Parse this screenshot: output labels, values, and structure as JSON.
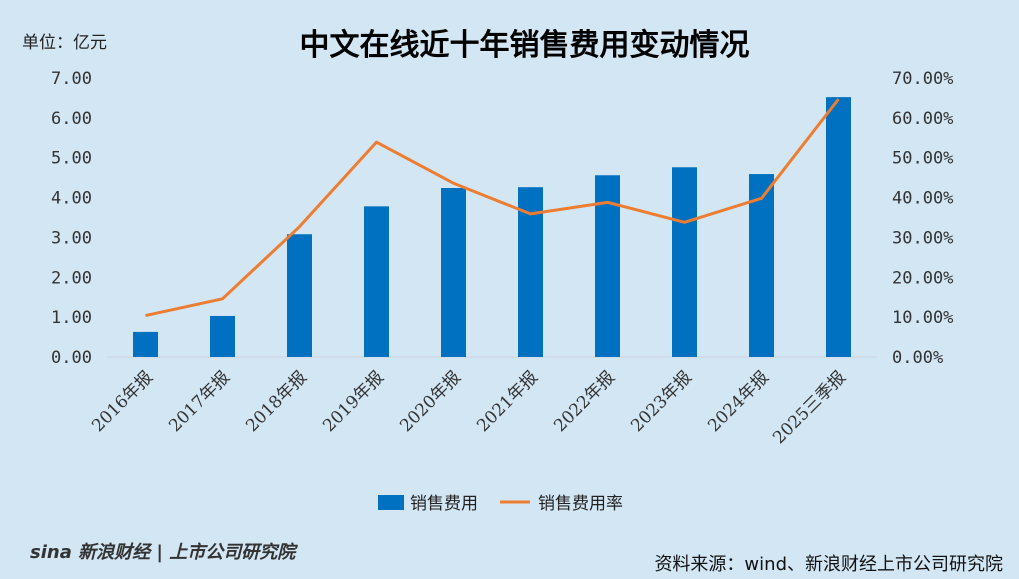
{
  "unit_label": "单位：亿元",
  "source": "资料来源：wind、新浪财经上市公司研究院",
  "watermark": "sina新浪财经 | 上市公司研究院",
  "chart_data": {
    "type": "bar+line",
    "title": "中文在线近十年销售费用变动情况",
    "categories": [
      "2016年报",
      "2017年报",
      "2018年报",
      "2019年报",
      "2020年报",
      "2021年报",
      "2022年报",
      "2023年报",
      "2024年报",
      "2025三季报"
    ],
    "series": [
      {
        "name": "销售费用",
        "type": "bar",
        "axis": "left",
        "color": "#0070c0",
        "values": [
          0.63,
          1.03,
          3.08,
          3.78,
          4.24,
          4.26,
          4.56,
          4.76,
          4.59,
          6.52
        ]
      },
      {
        "name": "销售费用率",
        "type": "line",
        "axis": "right",
        "color": "#ed7d31",
        "values": [
          10.4,
          14.6,
          32.7,
          53.9,
          43.6,
          35.9,
          38.8,
          33.8,
          39.8,
          64.7
        ]
      }
    ],
    "left_ticks": [
      "0.00",
      "1.00",
      "2.00",
      "3.00",
      "4.00",
      "5.00",
      "6.00",
      "7.00"
    ],
    "right_ticks": [
      "0.00%",
      "10.00%",
      "20.00%",
      "30.00%",
      "40.00%",
      "50.00%",
      "60.00%",
      "70.00%"
    ],
    "ylim_left": [
      0,
      7
    ],
    "ylim_right": [
      0,
      70
    ],
    "legend_position": "bottom"
  }
}
